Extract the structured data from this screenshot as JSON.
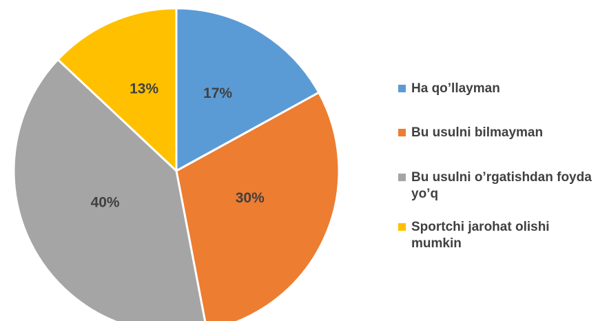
{
  "chart_data": {
    "type": "pie",
    "categories": [
      "Ha qo’llayman",
      "Bu usulni bilmayman",
      "Bu usulni o’rgatishdan foyda yo’q",
      "Sportchi jarohat olishi mumkin"
    ],
    "values": [
      17,
      30,
      40,
      13
    ],
    "value_labels": [
      "17%",
      "30%",
      "40%",
      "13%"
    ],
    "colors": [
      "#5b9bd5",
      "#ed7d31",
      "#a5a5a5",
      "#ffc000"
    ],
    "legend": "right"
  }
}
